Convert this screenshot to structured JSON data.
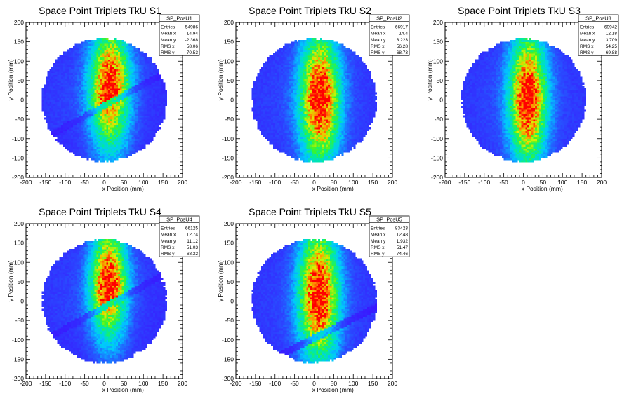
{
  "chart_data": [
    {
      "type": "heatmap",
      "title": "Space Point Triplets TkU S1",
      "xlabel": "x Position (mm)",
      "ylabel": "y Position (mm)",
      "xlim": [
        -200,
        200
      ],
      "ylim": [
        -200,
        200
      ],
      "xticks": [
        -200,
        -150,
        -100,
        -50,
        0,
        50,
        100,
        150,
        200
      ],
      "yticks": [
        -200,
        -150,
        -100,
        -50,
        0,
        50,
        100,
        150,
        200
      ],
      "grid": false,
      "stats": {
        "name": "SP_PosU1",
        "rows": [
          {
            "label": "Entries",
            "value": "54986"
          },
          {
            "label": "Mean x",
            "value": "14.94"
          },
          {
            "label": "Mean y",
            "value": "-2.368"
          },
          {
            "label": "RMS x",
            "value": "58.06"
          },
          {
            "label": "RMS y",
            "value": "70.53"
          }
        ]
      },
      "distribution": {
        "radius_mm": 160,
        "core_x_mm": 15,
        "core_y_mm": 25,
        "core_sigma_x_mm": 35,
        "core_sigma_y_mm": 90,
        "gap": "diagonal-low"
      }
    },
    {
      "type": "heatmap",
      "title": "Space Point Triplets TkU S2",
      "xlabel": "x Position (mm)",
      "ylabel": "y Position (mm)",
      "xlim": [
        -200,
        200
      ],
      "ylim": [
        -200,
        200
      ],
      "xticks": [
        -200,
        -150,
        -100,
        -50,
        0,
        50,
        100,
        150,
        200
      ],
      "yticks": [
        -200,
        -150,
        -100,
        -50,
        0,
        50,
        100,
        150,
        200
      ],
      "grid": false,
      "stats": {
        "name": "SP_PosU2",
        "rows": [
          {
            "label": "Entries",
            "value": "66917"
          },
          {
            "label": "Mean x",
            "value": "14.4"
          },
          {
            "label": "Mean y",
            "value": "3.223"
          },
          {
            "label": "RMS x",
            "value": "56.28"
          },
          {
            "label": "RMS y",
            "value": "68.73"
          }
        ]
      },
      "distribution": {
        "radius_mm": 160,
        "core_x_mm": 15,
        "core_y_mm": 5,
        "core_sigma_x_mm": 35,
        "core_sigma_y_mm": 95,
        "gap": "none"
      }
    },
    {
      "type": "heatmap",
      "title": "Space Point Triplets TkU S3",
      "xlabel": "x Position (mm)",
      "ylabel": "y Position (mm)",
      "xlim": [
        -200,
        200
      ],
      "ylim": [
        -200,
        200
      ],
      "xticks": [
        -200,
        -150,
        -100,
        -50,
        0,
        50,
        100,
        150,
        200
      ],
      "yticks": [
        -200,
        -150,
        -100,
        -50,
        0,
        50,
        100,
        150,
        200
      ],
      "grid": false,
      "stats": {
        "name": "SP_PosU3",
        "rows": [
          {
            "label": "Entries",
            "value": "69942"
          },
          {
            "label": "Mean x",
            "value": "12.18"
          },
          {
            "label": "Mean y",
            "value": "3.709"
          },
          {
            "label": "RMS x",
            "value": "54.25"
          },
          {
            "label": "RMS y",
            "value": "69.88"
          }
        ]
      },
      "distribution": {
        "radius_mm": 160,
        "core_x_mm": 12,
        "core_y_mm": 5,
        "core_sigma_x_mm": 33,
        "core_sigma_y_mm": 95,
        "gap": "none"
      }
    },
    {
      "type": "heatmap",
      "title": "Space Point Triplets TkU S4",
      "xlabel": "x Position (mm)",
      "ylabel": "y Position (mm)",
      "xlim": [
        -200,
        200
      ],
      "ylim": [
        -200,
        200
      ],
      "xticks": [
        -200,
        -150,
        -100,
        -50,
        0,
        50,
        100,
        150,
        200
      ],
      "yticks": [
        -200,
        -150,
        -100,
        -50,
        0,
        50,
        100,
        150,
        200
      ],
      "grid": false,
      "stats": {
        "name": "SP_PosU4",
        "rows": [
          {
            "label": "Entries",
            "value": "66125"
          },
          {
            "label": "Mean x",
            "value": "12.74"
          },
          {
            "label": "Mean y",
            "value": "11.12"
          },
          {
            "label": "RMS x",
            "value": "51.03"
          },
          {
            "label": "RMS y",
            "value": "68.32"
          }
        ]
      },
      "distribution": {
        "radius_mm": 160,
        "core_x_mm": 12,
        "core_y_mm": 40,
        "core_sigma_x_mm": 32,
        "core_sigma_y_mm": 80,
        "gap": "diagonal-low"
      }
    },
    {
      "type": "heatmap",
      "title": "Space Point Triplets TkU S5",
      "xlabel": "x Position (mm)",
      "ylabel": "y Position (mm)",
      "xlim": [
        -200,
        200
      ],
      "ylim": [
        -200,
        200
      ],
      "xticks": [
        -200,
        -150,
        -100,
        -50,
        0,
        50,
        100,
        150,
        200
      ],
      "yticks": [
        -200,
        -150,
        -100,
        -50,
        0,
        50,
        100,
        150,
        200
      ],
      "grid": false,
      "stats": {
        "name": "SP_PosU5",
        "rows": [
          {
            "label": "Entries",
            "value": "83423"
          },
          {
            "label": "Mean x",
            "value": "12.48"
          },
          {
            "label": "Mean y",
            "value": "1.932"
          },
          {
            "label": "RMS x",
            "value": "51.47"
          },
          {
            "label": "RMS y",
            "value": "74.46"
          }
        ]
      },
      "distribution": {
        "radius_mm": 160,
        "core_x_mm": 12,
        "core_y_mm": 20,
        "core_sigma_x_mm": 35,
        "core_sigma_y_mm": 95,
        "gap": "diagonal-bottom"
      }
    }
  ]
}
